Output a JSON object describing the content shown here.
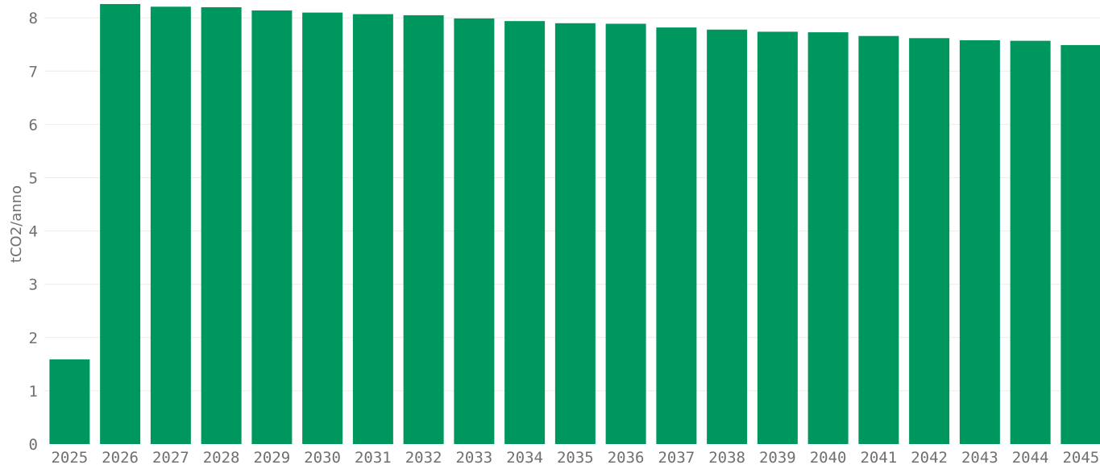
{
  "chart_data": {
    "type": "bar",
    "title": "",
    "xlabel": "",
    "ylabel": "tCO2/anno",
    "ylim": [
      0,
      8.3
    ],
    "yticks": [
      0,
      1,
      2,
      3,
      4,
      5,
      6,
      7,
      8
    ],
    "grid": true,
    "legend": "none",
    "bar_color": "#00975f",
    "categories": [
      "2025",
      "2026",
      "2027",
      "2028",
      "2029",
      "2030",
      "2031",
      "2032",
      "2033",
      "2034",
      "2035",
      "2036",
      "2037",
      "2038",
      "2039",
      "2040",
      "2041",
      "2042",
      "2043",
      "2044",
      "2045"
    ],
    "values": [
      1.59,
      8.26,
      8.21,
      8.2,
      8.14,
      8.1,
      8.07,
      8.05,
      7.99,
      7.94,
      7.9,
      7.89,
      7.82,
      7.78,
      7.74,
      7.73,
      7.66,
      7.62,
      7.58,
      7.57,
      7.49
    ]
  }
}
